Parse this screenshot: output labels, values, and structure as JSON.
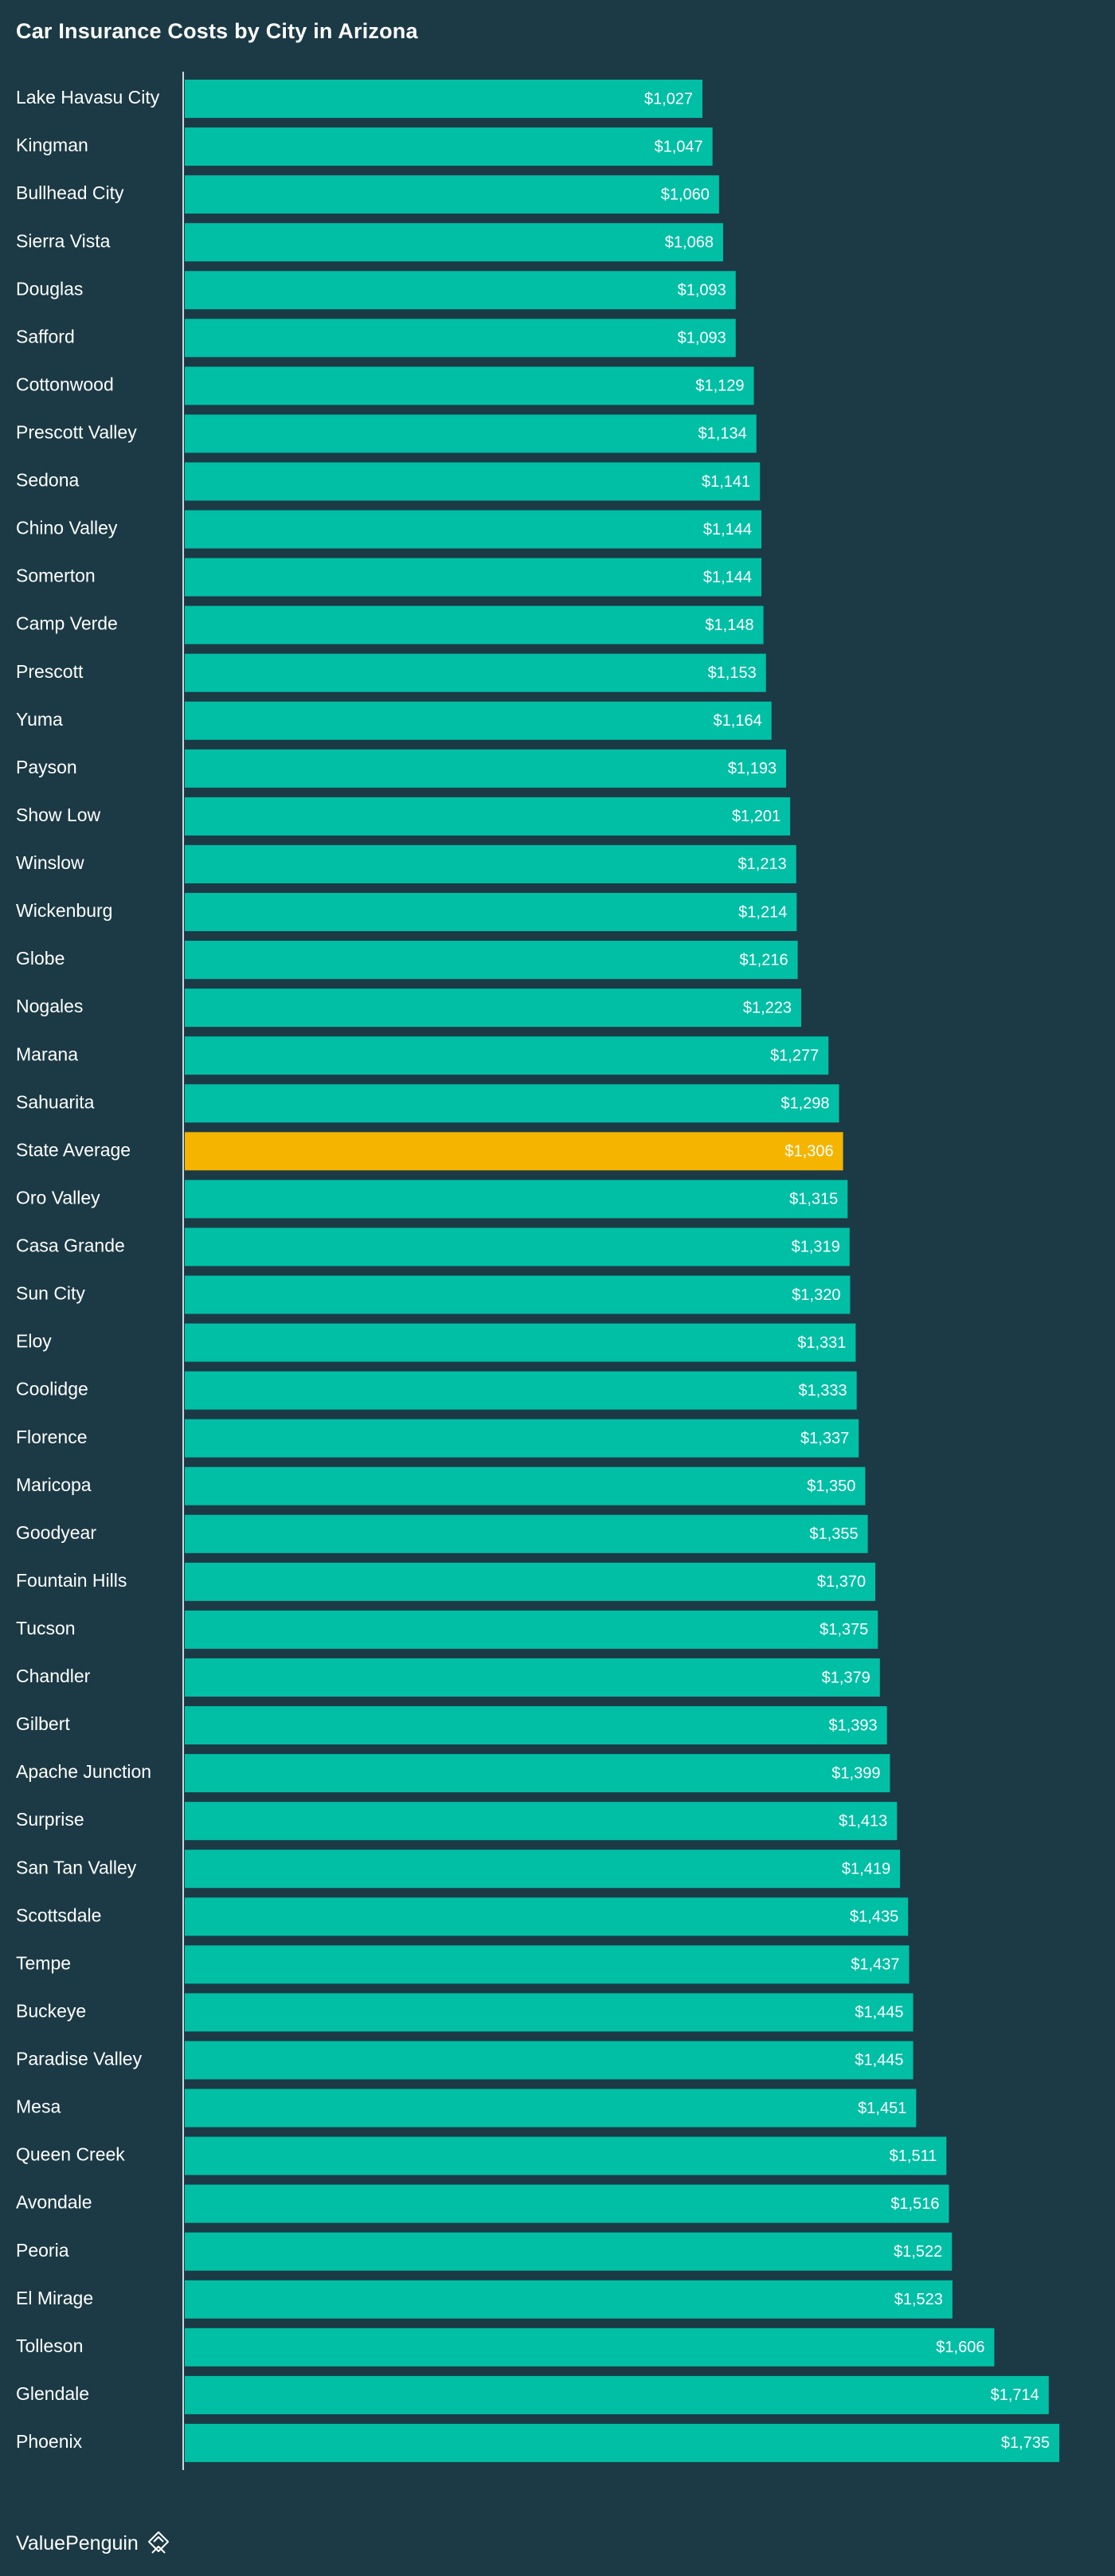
{
  "colors": {
    "background": "#1b3a45",
    "bar": "#00bfa5",
    "highlight_bar": "#f5b400",
    "text": "#ffffff",
    "axis": "#cfd8dc"
  },
  "brand": {
    "name": "ValuePenguin",
    "icon": "penguin-logo-icon"
  },
  "chart_data": {
    "type": "bar",
    "orientation": "horizontal",
    "title": "Car Insurance Costs by City in Arizona",
    "xlabel": "",
    "ylabel": "",
    "xlim": [
      0,
      2100
    ],
    "grid": false,
    "legend": "none",
    "highlight": "State Average",
    "categories": [
      "Lake Havasu City",
      "Kingman",
      "Bullhead City",
      "Sierra Vista",
      "Douglas",
      "Safford",
      "Cottonwood",
      "Prescott Valley",
      "Sedona",
      "Chino Valley",
      "Somerton",
      "Camp Verde",
      "Prescott",
      "Yuma",
      "Payson",
      "Show Low",
      "Winslow",
      "Wickenburg",
      "Globe",
      "Nogales",
      "Marana",
      "Sahuarita",
      "State Average",
      "Oro Valley",
      "Casa Grande",
      "Sun City",
      "Eloy",
      "Coolidge",
      "Florence",
      "Maricopa",
      "Goodyear",
      "Fountain Hills",
      "Tucson",
      "Chandler",
      "Gilbert",
      "Apache Junction",
      "Surprise",
      "San Tan Valley",
      "Scottsdale",
      "Tempe",
      "Buckeye",
      "Paradise Valley",
      "Mesa",
      "Queen Creek",
      "Avondale",
      "Peoria",
      "El Mirage",
      "Tolleson",
      "Glendale",
      "Phoenix"
    ],
    "values": [
      1027,
      1047,
      1060,
      1068,
      1093,
      1093,
      1129,
      1134,
      1141,
      1144,
      1144,
      1148,
      1153,
      1164,
      1193,
      1201,
      1213,
      1214,
      1216,
      1223,
      1277,
      1298,
      1306,
      1315,
      1319,
      1320,
      1331,
      1333,
      1337,
      1350,
      1355,
      1370,
      1375,
      1379,
      1393,
      1399,
      1413,
      1419,
      1435,
      1437,
      1445,
      1445,
      1451,
      1511,
      1516,
      1522,
      1523,
      1606,
      1714,
      1735
    ],
    "data_labels": [
      "$1,027",
      "$1,047",
      "$1,060",
      "$1,068",
      "$1,093",
      "$1,093",
      "$1,129",
      "$1,134",
      "$1,141",
      "$1,144",
      "$1,144",
      "$1,148",
      "$1,153",
      "$1,164",
      "$1,193",
      "$1,201",
      "$1,213",
      "$1,214",
      "$1,216",
      "$1,223",
      "$1,277",
      "$1,298",
      "$1,306",
      "$1,315",
      "$1,319",
      "$1,320",
      "$1,331",
      "$1,333",
      "$1,337",
      "$1,350",
      "$1,355",
      "$1,370",
      "$1,375",
      "$1,379",
      "$1,393",
      "$1,399",
      "$1,413",
      "$1,419",
      "$1,435",
      "$1,437",
      "$1,445",
      "$1,445",
      "$1,451",
      "$1,511",
      "$1,516",
      "$1,522",
      "$1,523",
      "$1,606",
      "$1,714",
      "$1,735"
    ]
  }
}
